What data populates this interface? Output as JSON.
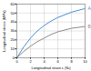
{
  "chart_data": {
    "type": "line",
    "x_label": "Longitudinal strain ε (‰)",
    "y_label": "Longitudinal stress (MPa)",
    "x": [
      0,
      1,
      2,
      3,
      4,
      5,
      6,
      7,
      8,
      9,
      10
    ],
    "series": [
      {
        "name": "A",
        "color": "#4a8fd6",
        "values": [
          0,
          12,
          22,
          30,
          36,
          41,
          45,
          48,
          51,
          53,
          55
        ]
      },
      {
        "name": "B",
        "color": "#8c8c8c",
        "values": [
          0,
          7,
          13,
          18,
          22,
          26,
          29,
          31,
          33,
          34,
          35
        ]
      }
    ],
    "xlim": [
      0,
      10
    ],
    "xticks": [
      0,
      2,
      4,
      6,
      8,
      10
    ],
    "ylim": [
      0,
      60
    ],
    "yticks": [
      0,
      10,
      20,
      30,
      40,
      50,
      60
    ],
    "grid": true
  }
}
